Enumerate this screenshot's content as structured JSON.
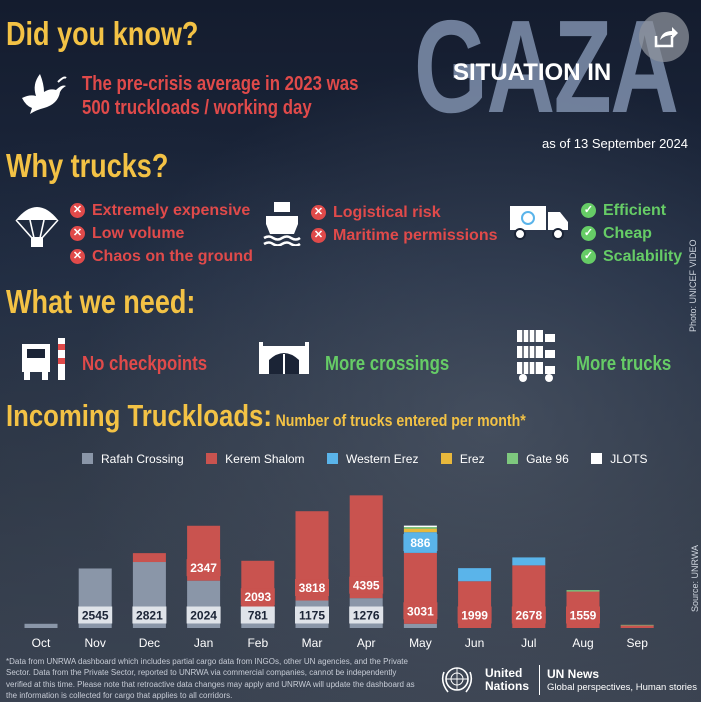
{
  "header": {
    "did_you_know": "Did you know?",
    "fact_line1": "The pre-crisis average in 2023 was",
    "fact_line2": "500 truckloads / working day",
    "gaza_word": "GAZA",
    "situation_in": "SITUATION IN",
    "as_of": "as of 13 September 2024"
  },
  "why_trucks": {
    "title": "Why trucks?",
    "airdrop_items": [
      "Extremely expensive",
      "Low volume",
      "Chaos on the ground"
    ],
    "sea_items": [
      "Logistical risk",
      "Maritime permissions"
    ],
    "truck_items": [
      "Efficient",
      "Cheap",
      "Scalability"
    ]
  },
  "needs": {
    "title": "What we need:",
    "items": [
      "No checkpoints",
      "More crossings",
      "More trucks"
    ]
  },
  "chart_title": "Incoming Truckloads",
  "chart_subtitle": "Number of trucks entered per month*",
  "photo_credit": "Photo: UNICEF VIDEO",
  "source": "Source: UNRWA",
  "footnote": "*Data from UNRWA dashboard which includes partial cargo data from INGOs, other UN agencies, and the Private Sector. Data from the Private Sector, reported to UNRWA via commercial companies, cannot be independently verified at this time. Please note that retroactive data changes may apply and UNRWA will update the dashboard as the information is collected for cargo that applies to all corridors.",
  "footer": {
    "un_line1": "United",
    "un_line2": "Nations",
    "news_title": "UN News",
    "news_tagline": "Global perspectives, Human stories"
  },
  "icons": {
    "share": "share-icon",
    "dove": "dove-icon",
    "parachute": "parachute-icon",
    "ship": "ship-icon",
    "truck": "un-truck-icon",
    "checkpoint": "checkpoint-icon",
    "crossing": "crossing-gate-icon",
    "trucks": "truck-fleet-icon"
  },
  "colors": {
    "rafah": "#8a96a8",
    "kerem": "#c9534f",
    "western_erez": "#5ab4ea",
    "erez": "#e8b83c",
    "gate96": "#7ec87e",
    "jlots": "#ffffff",
    "yellow": "#f3c245",
    "red": "#e04a4a",
    "green": "#66cc66"
  },
  "chart_data": {
    "type": "bar",
    "stacked": true,
    "categories": [
      "Oct",
      "Nov",
      "Dec",
      "Jan",
      "Feb",
      "Mar",
      "Apr",
      "May",
      "Jun",
      "Jul",
      "Aug",
      "Sep"
    ],
    "series": [
      {
        "name": "Rafah Crossing",
        "color": "#8a96a8",
        "values": [
          180,
          2545,
          2821,
          2024,
          781,
          1175,
          1276,
          180,
          0,
          0,
          0,
          0
        ]
      },
      {
        "name": "Kerem Shalom",
        "color": "#c9534f",
        "values": [
          0,
          0,
          380,
          2347,
          2093,
          3818,
          4395,
          3031,
          1999,
          2678,
          1559,
          110
        ]
      },
      {
        "name": "Western Erez",
        "color": "#5ab4ea",
        "values": [
          0,
          0,
          0,
          0,
          0,
          0,
          0,
          886,
          560,
          340,
          0,
          0
        ]
      },
      {
        "name": "Erez",
        "color": "#e8b83c",
        "values": [
          0,
          0,
          0,
          0,
          0,
          0,
          0,
          150,
          0,
          0,
          0,
          0
        ]
      },
      {
        "name": "Gate 96",
        "color": "#7ec87e",
        "values": [
          0,
          0,
          0,
          0,
          0,
          0,
          0,
          70,
          0,
          0,
          60,
          25
        ]
      },
      {
        "name": "JLOTS",
        "color": "#ffffff",
        "values": [
          0,
          0,
          0,
          0,
          0,
          0,
          0,
          60,
          0,
          0,
          0,
          0
        ]
      }
    ],
    "labels": [
      {
        "month": "Nov",
        "series": "Rafah Crossing",
        "text": "2545"
      },
      {
        "month": "Dec",
        "series": "Rafah Crossing",
        "text": "2821"
      },
      {
        "month": "Jan",
        "series": "Rafah Crossing",
        "text": "2024"
      },
      {
        "month": "Jan",
        "series": "Kerem Shalom",
        "text": "2347"
      },
      {
        "month": "Feb",
        "series": "Rafah Crossing",
        "text": "781"
      },
      {
        "month": "Feb",
        "series": "Kerem Shalom",
        "text": "2093"
      },
      {
        "month": "Mar",
        "series": "Rafah Crossing",
        "text": "1175"
      },
      {
        "month": "Mar",
        "series": "Kerem Shalom",
        "text": "3818"
      },
      {
        "month": "Apr",
        "series": "Rafah Crossing",
        "text": "1276"
      },
      {
        "month": "Apr",
        "series": "Kerem Shalom",
        "text": "4395"
      },
      {
        "month": "May",
        "series": "Kerem Shalom",
        "text": "3031"
      },
      {
        "month": "May",
        "series": "Western Erez",
        "text": "886"
      },
      {
        "month": "Jun",
        "series": "Kerem Shalom",
        "text": "1999"
      },
      {
        "month": "Jul",
        "series": "Kerem Shalom",
        "text": "2678"
      },
      {
        "month": "Aug",
        "series": "Kerem Shalom",
        "text": "1559"
      }
    ],
    "ylim": [
      0,
      5900
    ],
    "grid": false,
    "legend": "top"
  }
}
